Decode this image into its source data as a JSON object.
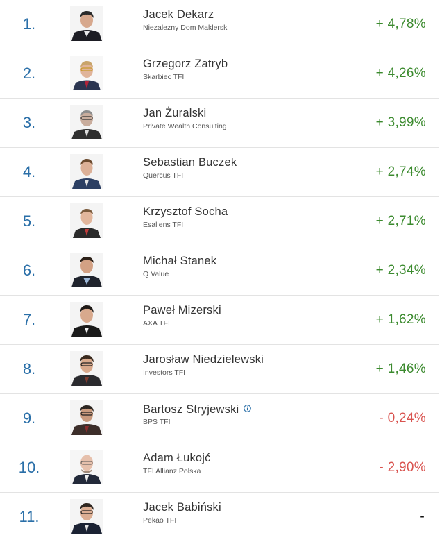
{
  "colors": {
    "rank": "#2a6fa8",
    "positive": "#3b8a2e",
    "negative": "#d9534f",
    "neutral": "#111111",
    "divider": "#e3e3e3",
    "info": "#2a6fa8"
  },
  "rows": [
    {
      "rank": "1.",
      "name": "Jacek Dekarz",
      "company": "Niezależny Dom Maklerski",
      "value": "+ 4,78%",
      "trend": "pos",
      "avatar_icon": "person-photo-icon"
    },
    {
      "rank": "2.",
      "name": "Grzegorz Zatryb",
      "company": "Skarbiec TFI",
      "value": "+ 4,26%",
      "trend": "pos",
      "avatar_icon": "person-photo-icon"
    },
    {
      "rank": "3.",
      "name": "Jan Żuralski",
      "company": "Private Wealth Consulting",
      "value": "+ 3,99%",
      "trend": "pos",
      "avatar_icon": "person-photo-icon"
    },
    {
      "rank": "4.",
      "name": "Sebastian Buczek",
      "company": "Quercus TFI",
      "value": "+ 2,74%",
      "trend": "pos",
      "avatar_icon": "person-photo-icon"
    },
    {
      "rank": "5.",
      "name": "Krzysztof Socha",
      "company": "Esaliens TFI",
      "value": "+ 2,71%",
      "trend": "pos",
      "avatar_icon": "person-photo-icon"
    },
    {
      "rank": "6.",
      "name": "Michał Stanek",
      "company": "Q Value",
      "value": "+ 2,34%",
      "trend": "pos",
      "avatar_icon": "person-photo-icon"
    },
    {
      "rank": "7.",
      "name": "Paweł Mizerski",
      "company": "AXA TFI",
      "value": "+ 1,62%",
      "trend": "pos",
      "avatar_icon": "person-photo-icon"
    },
    {
      "rank": "8.",
      "name": "Jarosław Niedzielewski",
      "company": "Investors TFI",
      "value": "+ 1,46%",
      "trend": "pos",
      "avatar_icon": "person-photo-icon"
    },
    {
      "rank": "9.",
      "name": "Bartosz Stryjewski",
      "company": "BPS TFI",
      "value": "- 0,24%",
      "trend": "neg",
      "avatar_icon": "person-photo-icon",
      "info_icon": "info-circle-icon"
    },
    {
      "rank": "10.",
      "name": "Adam Łukojć",
      "company": "TFI Allianz Polska",
      "value": "- 2,90%",
      "trend": "neg",
      "avatar_icon": "person-photo-icon"
    },
    {
      "rank": "11.",
      "name": "Jacek Babiński",
      "company": "Pekao TFI",
      "value": "-",
      "trend": "none",
      "avatar_icon": "person-photo-icon"
    }
  ]
}
